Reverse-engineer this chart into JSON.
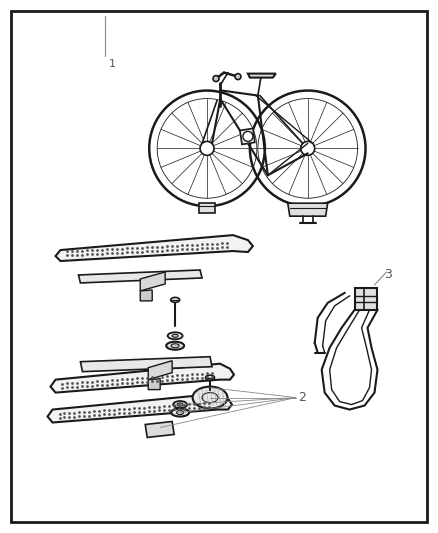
{
  "background_color": "#ffffff",
  "border_color": "#1a1a1a",
  "border_linewidth": 2.0,
  "label_color": "#555555",
  "label_fontsize": 8,
  "line_color": "#1a1a1a",
  "line_color_mid": "#555555",
  "line_color_light": "#888888",
  "fig_width": 4.38,
  "fig_height": 5.33,
  "dpi": 100
}
